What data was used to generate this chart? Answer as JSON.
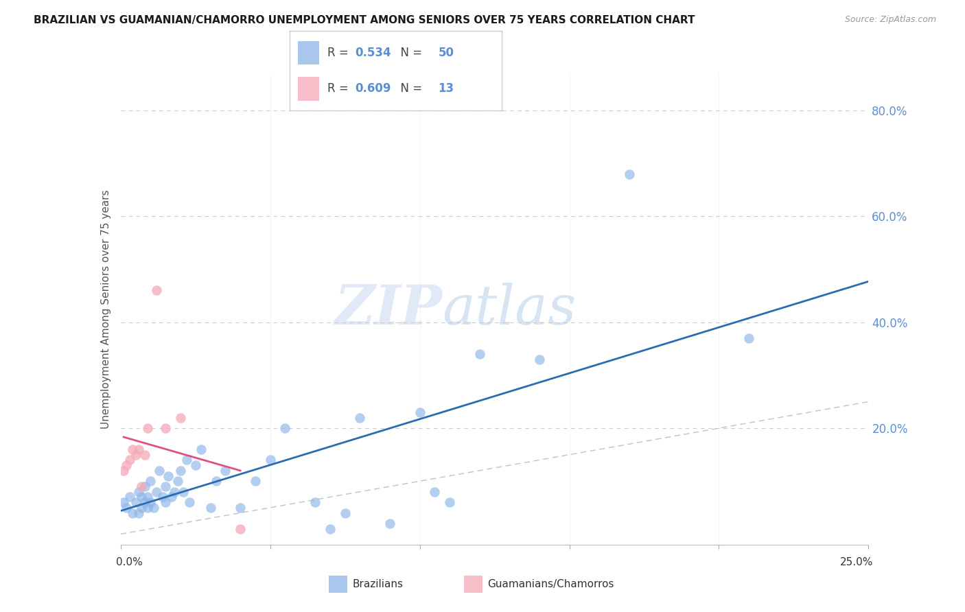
{
  "title": "BRAZILIAN VS GUAMANIAN/CHAMORRO UNEMPLOYMENT AMONG SENIORS OVER 75 YEARS CORRELATION CHART",
  "source": "Source: ZipAtlas.com",
  "ylabel": "Unemployment Among Seniors over 75 years",
  "ylabel_right_ticks": [
    "80.0%",
    "60.0%",
    "40.0%",
    "20.0%"
  ],
  "ylabel_right_vals": [
    0.8,
    0.6,
    0.4,
    0.2
  ],
  "xlim": [
    0.0,
    0.25
  ],
  "ylim": [
    -0.02,
    0.87
  ],
  "watermark_zip": "ZIP",
  "watermark_atlas": "atlas",
  "legend_brazilian_R": "0.534",
  "legend_brazilian_N": "50",
  "legend_guamanian_R": "0.609",
  "legend_guamanian_N": "13",
  "color_blue": "#8DB4E8",
  "color_pink": "#F4A9B8",
  "color_trend_blue": "#2B6CB0",
  "color_trend_pink": "#E05080",
  "color_diagonal": "#BBBBBB",
  "color_grid": "#CCCCCC",
  "color_right_tick": "#5B8FD4",
  "brazilian_x": [
    0.001,
    0.002,
    0.003,
    0.004,
    0.005,
    0.006,
    0.006,
    0.007,
    0.007,
    0.008,
    0.008,
    0.009,
    0.009,
    0.01,
    0.01,
    0.011,
    0.012,
    0.013,
    0.014,
    0.015,
    0.015,
    0.016,
    0.017,
    0.018,
    0.019,
    0.02,
    0.021,
    0.022,
    0.023,
    0.025,
    0.027,
    0.03,
    0.032,
    0.035,
    0.04,
    0.045,
    0.05,
    0.055,
    0.065,
    0.07,
    0.075,
    0.08,
    0.09,
    0.1,
    0.105,
    0.11,
    0.12,
    0.14,
    0.17,
    0.21
  ],
  "brazilian_y": [
    0.06,
    0.05,
    0.07,
    0.04,
    0.06,
    0.08,
    0.04,
    0.07,
    0.05,
    0.09,
    0.06,
    0.07,
    0.05,
    0.1,
    0.06,
    0.05,
    0.08,
    0.12,
    0.07,
    0.09,
    0.06,
    0.11,
    0.07,
    0.08,
    0.1,
    0.12,
    0.08,
    0.14,
    0.06,
    0.13,
    0.16,
    0.05,
    0.1,
    0.12,
    0.05,
    0.1,
    0.14,
    0.2,
    0.06,
    0.01,
    0.04,
    0.22,
    0.02,
    0.23,
    0.08,
    0.06,
    0.34,
    0.33,
    0.68,
    0.37
  ],
  "guamanian_x": [
    0.001,
    0.002,
    0.003,
    0.004,
    0.005,
    0.006,
    0.007,
    0.008,
    0.009,
    0.012,
    0.015,
    0.02,
    0.04
  ],
  "guamanian_y": [
    0.12,
    0.13,
    0.14,
    0.16,
    0.15,
    0.16,
    0.09,
    0.15,
    0.2,
    0.46,
    0.2,
    0.22,
    0.01
  ]
}
